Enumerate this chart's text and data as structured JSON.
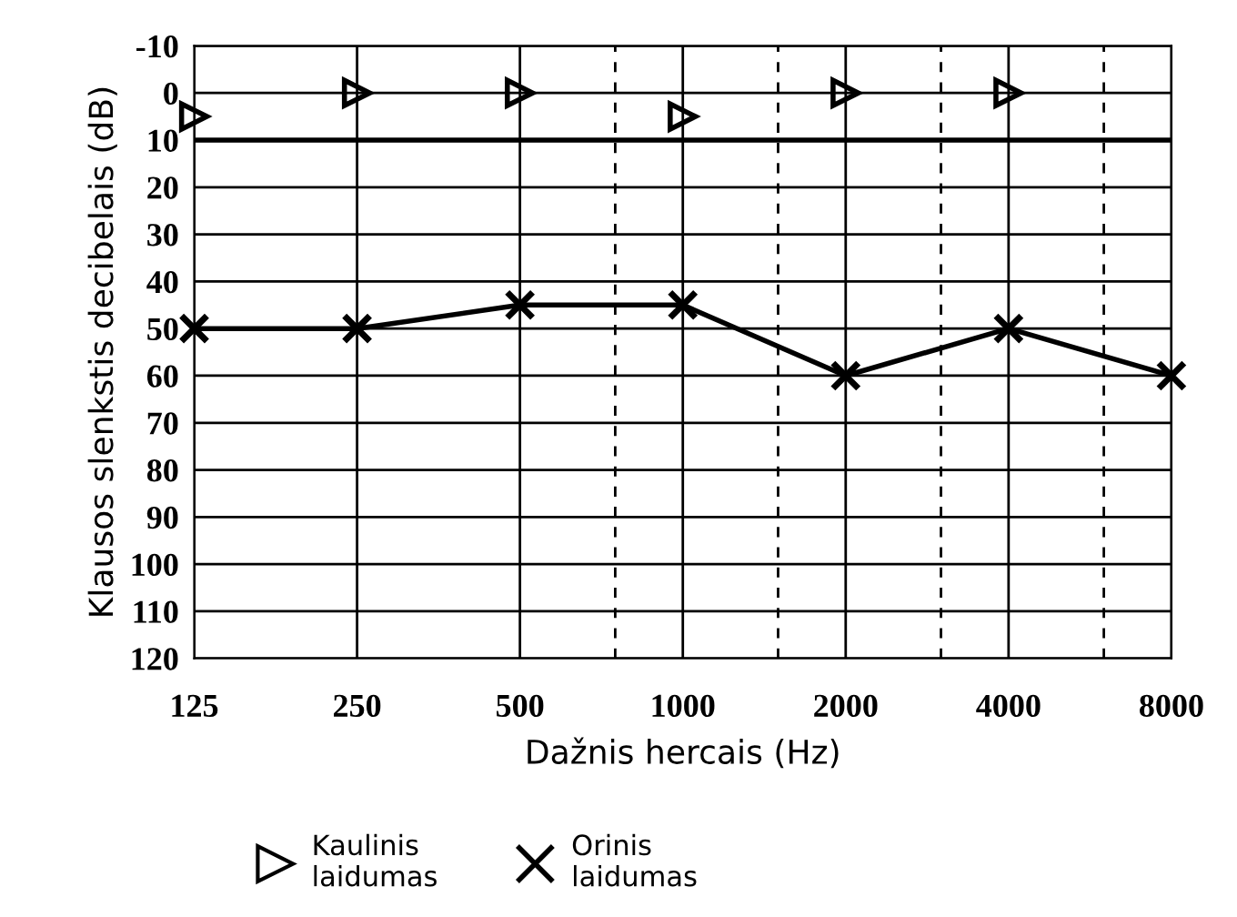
{
  "chart_data": {
    "type": "line",
    "xlabel": "Dažnis hercais (Hz)",
    "ylabel": "Klausos slenkstis decibelais (dB)",
    "log": "x",
    "xlim": [
      125,
      8000
    ],
    "xticks": [
      125,
      250,
      500,
      1000,
      2000,
      4000,
      8000
    ],
    "ylim": [
      120,
      -10
    ],
    "yticks": [
      -10,
      0,
      10,
      20,
      30,
      40,
      50,
      60,
      70,
      80,
      90,
      100,
      110,
      120
    ],
    "grid": true,
    "legend": "bottom",
    "series": [
      {
        "name": "Kaulinis\nlaidumas",
        "type": "scatter",
        "marker": "triangle",
        "color": "#000000",
        "x": [
          125,
          250,
          500,
          1000,
          2000,
          4000
        ],
        "values": [
          5,
          0,
          0,
          5,
          0,
          0
        ]
      },
      {
        "name": "Orinis\nlaidumas",
        "marker": "cross",
        "line_style": "solid",
        "color": "#000000",
        "x": [
          125,
          250,
          500,
          1000,
          2000,
          4000,
          8000
        ],
        "values": [
          50,
          50,
          45,
          45,
          60,
          50,
          60
        ]
      }
    ],
    "ref_lines": [
      {
        "axis": "y",
        "value": 10,
        "color": "#000000",
        "line_style": "solid"
      },
      {
        "axis": "x",
        "value": 750,
        "color": "#000000",
        "line_style": "dashed"
      },
      {
        "axis": "x",
        "value": 1500,
        "color": "#000000",
        "line_style": "dashed"
      },
      {
        "axis": "x",
        "value": 3000,
        "color": "#000000",
        "line_style": "dashed"
      },
      {
        "axis": "x",
        "value": 6000,
        "color": "#000000",
        "line_style": "dashed"
      }
    ]
  }
}
